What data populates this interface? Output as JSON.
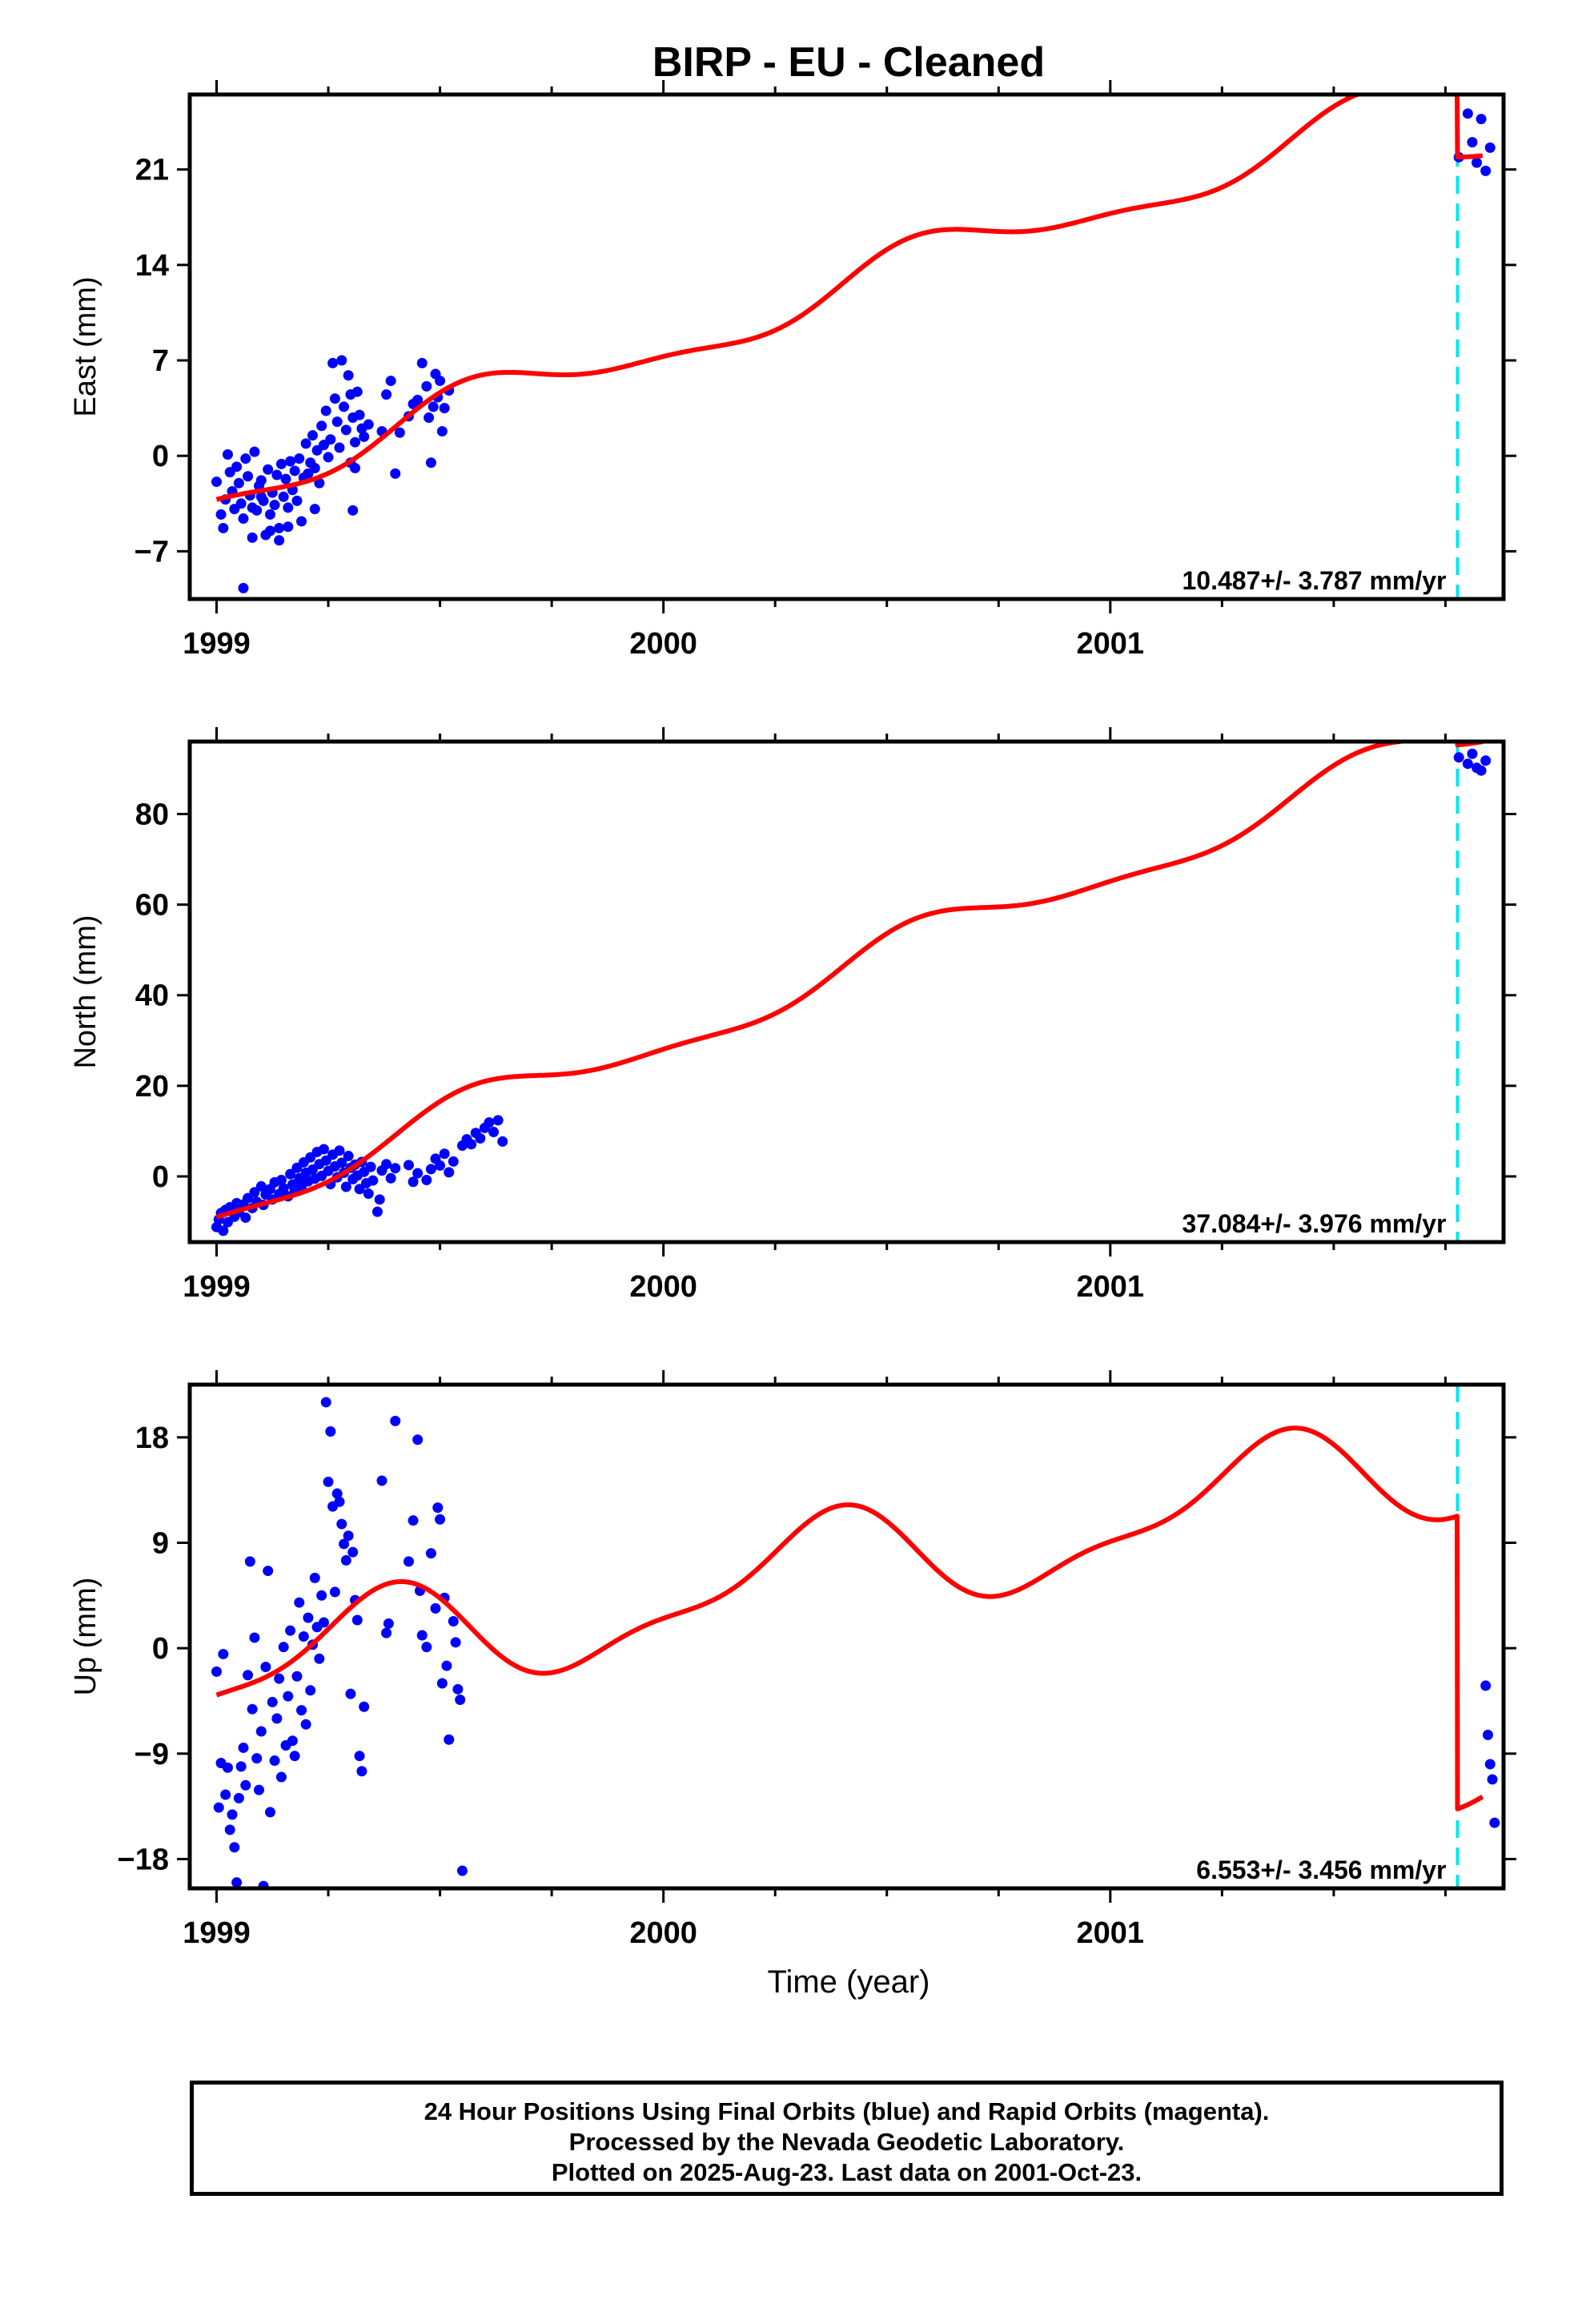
{
  "title": "BIRP  - EU - Cleaned",
  "colors": {
    "model": "#ff0000",
    "final_orbits": "#0000ff",
    "break_line": "#00e5ee",
    "axes": "#000000"
  },
  "xlabel": "Time (year)",
  "footer": {
    "line1": "24 Hour Positions Using Final Orbits (blue) and Rapid Orbits (magenta).",
    "line2": "Processed by the Nevada Geodetic Laboratory.",
    "line3": "Plotted on 2025-Aug-23. Last data on 2001-Oct-23."
  },
  "chart_data": [
    {
      "type": "scatter",
      "ylabel": "East (mm)",
      "xlim": [
        1998.94,
        2001.88
      ],
      "ylim": [
        -10.5,
        26.5
      ],
      "xticks": [
        1999,
        2000,
        2001
      ],
      "yticks": [
        -7,
        0,
        7,
        14,
        21
      ],
      "rate_text": "10.487+/- 3.787 mm/yr",
      "break_epoch": 2001.777,
      "model": {
        "name": "model",
        "offset": 0,
        "rate": 10.487,
        "t0": 1999.0,
        "annual_sin": -1.0,
        "annual_cos": -1.3,
        "semi_sin": 0.3,
        "semi_cos": 0.5,
        "jump_after_break": -5.0,
        "start_value": -3.2
      },
      "points": [
        [
          1999.0,
          -1.9
        ],
        [
          1999.01,
          -4.3
        ],
        [
          1999.015,
          -5.3
        ],
        [
          1999.02,
          -3.2
        ],
        [
          1999.025,
          0.1
        ],
        [
          1999.03,
          -1.2
        ],
        [
          1999.035,
          -2.6
        ],
        [
          1999.04,
          -3.9
        ],
        [
          1999.045,
          -0.8
        ],
        [
          1999.05,
          -2.0
        ],
        [
          1999.055,
          -3.5
        ],
        [
          1999.06,
          -4.6
        ],
        [
          1999.065,
          -0.2
        ],
        [
          1999.07,
          -1.5
        ],
        [
          1999.075,
          -2.9
        ],
        [
          1999.08,
          -3.8
        ],
        [
          1999.085,
          0.3
        ],
        [
          1999.09,
          -4.0
        ],
        [
          1999.095,
          -2.2
        ],
        [
          1999.1,
          -1.8
        ],
        [
          1999.105,
          -3.3
        ],
        [
          1999.11,
          -5.8
        ],
        [
          1999.115,
          -1.0
        ],
        [
          1999.12,
          -4.3
        ],
        [
          1999.125,
          -2.7
        ],
        [
          1999.13,
          -3.6
        ],
        [
          1999.135,
          -1.4
        ],
        [
          1999.14,
          -6.2
        ],
        [
          1999.145,
          -0.6
        ],
        [
          1999.15,
          -3.0
        ],
        [
          1999.155,
          -1.7
        ],
        [
          1999.16,
          -3.8
        ],
        [
          1999.165,
          -0.4
        ],
        [
          1999.17,
          -2.5
        ],
        [
          1999.175,
          -1.1
        ],
        [
          1999.18,
          -3.3
        ],
        [
          1999.185,
          -0.2
        ],
        [
          1999.19,
          -4.8
        ],
        [
          1999.195,
          -1.6
        ],
        [
          1999.2,
          0.9
        ],
        [
          1999.205,
          -1.3
        ],
        [
          1999.21,
          -0.5
        ],
        [
          1999.215,
          1.5
        ],
        [
          1999.22,
          -0.9
        ],
        [
          1999.225,
          0.4
        ],
        [
          1999.23,
          -2.0
        ],
        [
          1999.235,
          2.2
        ],
        [
          1999.24,
          0.8
        ],
        [
          1999.245,
          3.3
        ],
        [
          1999.25,
          -0.1
        ],
        [
          1999.255,
          1.2
        ],
        [
          1999.26,
          6.8
        ],
        [
          1999.265,
          4.2
        ],
        [
          1999.27,
          2.5
        ],
        [
          1999.275,
          0.6
        ],
        [
          1999.28,
          7.0
        ],
        [
          1999.285,
          3.6
        ],
        [
          1999.29,
          1.9
        ],
        [
          1999.295,
          5.9
        ],
        [
          1999.3,
          4.5
        ],
        [
          1999.305,
          2.8
        ],
        [
          1999.31,
          1.0
        ],
        [
          1999.315,
          4.7
        ],
        [
          1999.32,
          3.0
        ],
        [
          1999.325,
          2.0
        ],
        [
          1999.33,
          1.4
        ],
        [
          1999.06,
          -9.7
        ],
        [
          1999.08,
          -6.0
        ],
        [
          1999.1,
          -3.0
        ],
        [
          1999.12,
          -5.5
        ],
        [
          1999.14,
          -5.3
        ],
        [
          1999.16,
          -5.2
        ],
        [
          1999.22,
          -3.9
        ],
        [
          1999.305,
          -4.0
        ],
        [
          1999.3,
          -0.5
        ],
        [
          1999.31,
          -0.9
        ],
        [
          1999.34,
          2.3
        ],
        [
          1999.37,
          1.8
        ],
        [
          1999.38,
          4.5
        ],
        [
          1999.39,
          5.5
        ],
        [
          1999.4,
          -1.3
        ],
        [
          1999.41,
          1.7
        ],
        [
          1999.43,
          2.9
        ],
        [
          1999.44,
          3.8
        ],
        [
          1999.45,
          4.1
        ],
        [
          1999.46,
          6.8
        ],
        [
          1999.47,
          5.1
        ],
        [
          1999.475,
          2.8
        ],
        [
          1999.48,
          -0.5
        ],
        [
          1999.485,
          3.6
        ],
        [
          1999.49,
          6.0
        ],
        [
          1999.495,
          4.3
        ],
        [
          1999.5,
          5.5
        ],
        [
          1999.505,
          1.8
        ],
        [
          1999.51,
          3.5
        ],
        [
          1999.52,
          4.8
        ],
        [
          2001.78,
          21.9
        ],
        [
          2001.8,
          25.1
        ],
        [
          2001.81,
          23.0
        ],
        [
          2001.82,
          21.5
        ],
        [
          2001.83,
          24.7
        ],
        [
          2001.84,
          20.9
        ],
        [
          2001.85,
          22.6
        ]
      ]
    },
    {
      "type": "scatter",
      "ylabel": "North (mm)",
      "xlim": [
        1998.94,
        2001.88
      ],
      "ylim": [
        -14.5,
        96
      ],
      "xticks": [
        1999,
        2000,
        2001
      ],
      "yticks": [
        0,
        20,
        40,
        60,
        80
      ],
      "rate_text": "37.084+/- 3.976 mm/yr",
      "break_epoch": 2001.777,
      "model": {
        "name": "model",
        "offset": 0,
        "rate": 37.084,
        "t0": 1999.0,
        "annual_sin": -2.5,
        "annual_cos": -3.5,
        "semi_sin": 0.8,
        "semi_cos": 1.2,
        "jump_after_break": -1.5,
        "start_value": -9.0
      },
      "points": [
        [
          1999.0,
          -11.2
        ],
        [
          1999.005,
          -9.5
        ],
        [
          1999.01,
          -8.1
        ],
        [
          1999.015,
          -12.0
        ],
        [
          1999.02,
          -7.4
        ],
        [
          1999.025,
          -10.1
        ],
        [
          1999.03,
          -6.8
        ],
        [
          1999.04,
          -8.9
        ],
        [
          1999.045,
          -5.9
        ],
        [
          1999.05,
          -7.9
        ],
        [
          1999.06,
          -6.2
        ],
        [
          1999.065,
          -9.1
        ],
        [
          1999.07,
          -4.8
        ],
        [
          1999.08,
          -7.0
        ],
        [
          1999.085,
          -3.5
        ],
        [
          1999.09,
          -5.6
        ],
        [
          1999.1,
          -2.2
        ],
        [
          1999.105,
          -6.3
        ],
        [
          1999.11,
          -4.0
        ],
        [
          1999.12,
          -2.8
        ],
        [
          1999.125,
          -5.1
        ],
        [
          1999.13,
          -1.3
        ],
        [
          1999.14,
          -3.9
        ],
        [
          1999.145,
          -0.8
        ],
        [
          1999.15,
          -2.6
        ],
        [
          1999.16,
          -4.4
        ],
        [
          1999.165,
          0.5
        ],
        [
          1999.17,
          -1.8
        ],
        [
          1999.175,
          -3.0
        ],
        [
          1999.18,
          1.9
        ],
        [
          1999.185,
          -0.4
        ],
        [
          1999.19,
          -2.3
        ],
        [
          1999.195,
          3.1
        ],
        [
          1999.2,
          0.8
        ],
        [
          1999.205,
          -1.1
        ],
        [
          1999.21,
          4.2
        ],
        [
          1999.215,
          1.5
        ],
        [
          1999.22,
          -0.5
        ],
        [
          1999.225,
          5.4
        ],
        [
          1999.23,
          2.7
        ],
        [
          1999.235,
          0.1
        ],
        [
          1999.24,
          6.0
        ],
        [
          1999.245,
          3.5
        ],
        [
          1999.25,
          1.2
        ],
        [
          1999.255,
          -1.7
        ],
        [
          1999.26,
          4.8
        ],
        [
          1999.265,
          2.2
        ],
        [
          1999.27,
          -0.2
        ],
        [
          1999.275,
          5.7
        ],
        [
          1999.28,
          3.0
        ],
        [
          1999.285,
          0.8
        ],
        [
          1999.29,
          -2.3
        ],
        [
          1999.295,
          4.5
        ],
        [
          1999.3,
          1.9
        ],
        [
          1999.305,
          -0.6
        ],
        [
          1999.31,
          2.6
        ],
        [
          1999.315,
          0.2
        ],
        [
          1999.32,
          -2.8
        ],
        [
          1999.325,
          3.2
        ],
        [
          1999.33,
          1.0
        ],
        [
          1999.335,
          -1.5
        ],
        [
          1999.34,
          -3.8
        ],
        [
          1999.345,
          2.1
        ],
        [
          1999.35,
          -0.9
        ],
        [
          1999.36,
          -7.8
        ],
        [
          1999.365,
          -5.1
        ],
        [
          1999.37,
          1.3
        ],
        [
          1999.38,
          2.7
        ],
        [
          1999.39,
          -0.4
        ],
        [
          1999.4,
          1.8
        ],
        [
          1999.43,
          2.5
        ],
        [
          1999.44,
          -1.2
        ],
        [
          1999.45,
          0.7
        ],
        [
          1999.47,
          -0.8
        ],
        [
          1999.48,
          1.6
        ],
        [
          1999.49,
          3.9
        ],
        [
          1999.5,
          2.4
        ],
        [
          1999.51,
          5.0
        ],
        [
          1999.52,
          0.9
        ],
        [
          1999.53,
          3.3
        ],
        [
          1999.55,
          6.8
        ],
        [
          1999.56,
          8.2
        ],
        [
          1999.57,
          7.1
        ],
        [
          1999.58,
          9.6
        ],
        [
          1999.59,
          8.4
        ],
        [
          1999.6,
          10.7
        ],
        [
          1999.61,
          11.9
        ],
        [
          1999.62,
          9.8
        ],
        [
          1999.63,
          12.4
        ],
        [
          1999.64,
          7.7
        ],
        [
          2001.78,
          92.5
        ],
        [
          2001.8,
          91.1
        ],
        [
          2001.81,
          93.3
        ],
        [
          2001.82,
          90.2
        ],
        [
          2001.83,
          89.6
        ],
        [
          2001.84,
          91.8
        ]
      ]
    },
    {
      "type": "scatter",
      "ylabel": "Up (mm)",
      "xlim": [
        1998.94,
        2001.88
      ],
      "ylim": [
        -20.5,
        22.5
      ],
      "xticks": [
        1999,
        2000,
        2001
      ],
      "yticks": [
        -18,
        -9,
        0,
        9,
        18
      ],
      "rate_text": "6.553+/- 3.456 mm/yr",
      "break_epoch": 2001.777,
      "model": {
        "name": "model",
        "offset": 0,
        "rate": 6.553,
        "t0": 1999.0,
        "annual_sin": 3.5,
        "annual_cos": -2.5,
        "semi_sin": -1.2,
        "semi_cos": 1.0,
        "jump_after_break": -25.0,
        "start_value": -4.0
      },
      "points": [
        [
          1999.0,
          -2.0
        ],
        [
          1999.005,
          -13.6
        ],
        [
          1999.01,
          -9.8
        ],
        [
          1999.015,
          -0.5
        ],
        [
          1999.02,
          -12.5
        ],
        [
          1999.025,
          -10.2
        ],
        [
          1999.03,
          -15.5
        ],
        [
          1999.035,
          -14.2
        ],
        [
          1999.04,
          -17.0
        ],
        [
          1999.045,
          -20.0
        ],
        [
          1999.05,
          -12.8
        ],
        [
          1999.055,
          -10.1
        ],
        [
          1999.06,
          -8.5
        ],
        [
          1999.065,
          -11.7
        ],
        [
          1999.07,
          -2.3
        ],
        [
          1999.075,
          7.4
        ],
        [
          1999.08,
          -5.2
        ],
        [
          1999.085,
          0.9
        ],
        [
          1999.09,
          -9.4
        ],
        [
          1999.095,
          -12.1
        ],
        [
          1999.1,
          -7.1
        ],
        [
          1999.105,
          -20.3
        ],
        [
          1999.11,
          -1.6
        ],
        [
          1999.115,
          6.6
        ],
        [
          1999.12,
          -14.0
        ],
        [
          1999.125,
          -4.6
        ],
        [
          1999.13,
          -9.6
        ],
        [
          1999.135,
          -6.0
        ],
        [
          1999.14,
          -2.6
        ],
        [
          1999.145,
          -11.0
        ],
        [
          1999.15,
          0.1
        ],
        [
          1999.155,
          -8.3
        ],
        [
          1999.16,
          -4.1
        ],
        [
          1999.165,
          1.5
        ],
        [
          1999.17,
          -7.9
        ],
        [
          1999.175,
          -9.2
        ],
        [
          1999.18,
          -2.4
        ],
        [
          1999.185,
          3.9
        ],
        [
          1999.19,
          -5.3
        ],
        [
          1999.195,
          1.0
        ],
        [
          1999.2,
          -6.5
        ],
        [
          1999.205,
          2.6
        ],
        [
          1999.21,
          -3.6
        ],
        [
          1999.215,
          0.3
        ],
        [
          1999.22,
          6.0
        ],
        [
          1999.225,
          1.8
        ],
        [
          1999.23,
          -0.9
        ],
        [
          1999.235,
          4.5
        ],
        [
          1999.24,
          2.2
        ],
        [
          1999.245,
          21.0
        ],
        [
          1999.25,
          14.2
        ],
        [
          1999.255,
          18.5
        ],
        [
          1999.26,
          12.1
        ],
        [
          1999.265,
          4.8
        ],
        [
          1999.27,
          13.2
        ],
        [
          1999.275,
          12.5
        ],
        [
          1999.28,
          10.6
        ],
        [
          1999.285,
          8.9
        ],
        [
          1999.29,
          7.5
        ],
        [
          1999.295,
          9.6
        ],
        [
          1999.3,
          -3.9
        ],
        [
          1999.305,
          8.2
        ],
        [
          1999.31,
          4.1
        ],
        [
          1999.315,
          2.4
        ],
        [
          1999.32,
          -9.2
        ],
        [
          1999.325,
          -10.5
        ],
        [
          1999.33,
          -5.0
        ],
        [
          1999.37,
          14.3
        ],
        [
          1999.38,
          1.3
        ],
        [
          1999.385,
          2.1
        ],
        [
          1999.4,
          19.4
        ],
        [
          1999.43,
          7.4
        ],
        [
          1999.44,
          10.9
        ],
        [
          1999.45,
          17.8
        ],
        [
          1999.455,
          4.9
        ],
        [
          1999.46,
          1.1
        ],
        [
          1999.47,
          0.1
        ],
        [
          1999.48,
          8.1
        ],
        [
          1999.49,
          3.4
        ],
        [
          1999.495,
          12.0
        ],
        [
          1999.5,
          11.0
        ],
        [
          1999.505,
          -3.0
        ],
        [
          1999.51,
          4.3
        ],
        [
          1999.515,
          -1.5
        ],
        [
          1999.52,
          -7.8
        ],
        [
          1999.53,
          2.3
        ],
        [
          1999.535,
          0.5
        ],
        [
          1999.54,
          -3.5
        ],
        [
          1999.545,
          -4.4
        ],
        [
          1999.55,
          -19.0
        ],
        [
          2001.84,
          -3.2
        ],
        [
          2001.845,
          -7.4
        ],
        [
          2001.85,
          -9.9
        ],
        [
          2001.855,
          -11.2
        ],
        [
          2001.86,
          -14.9
        ]
      ]
    }
  ]
}
